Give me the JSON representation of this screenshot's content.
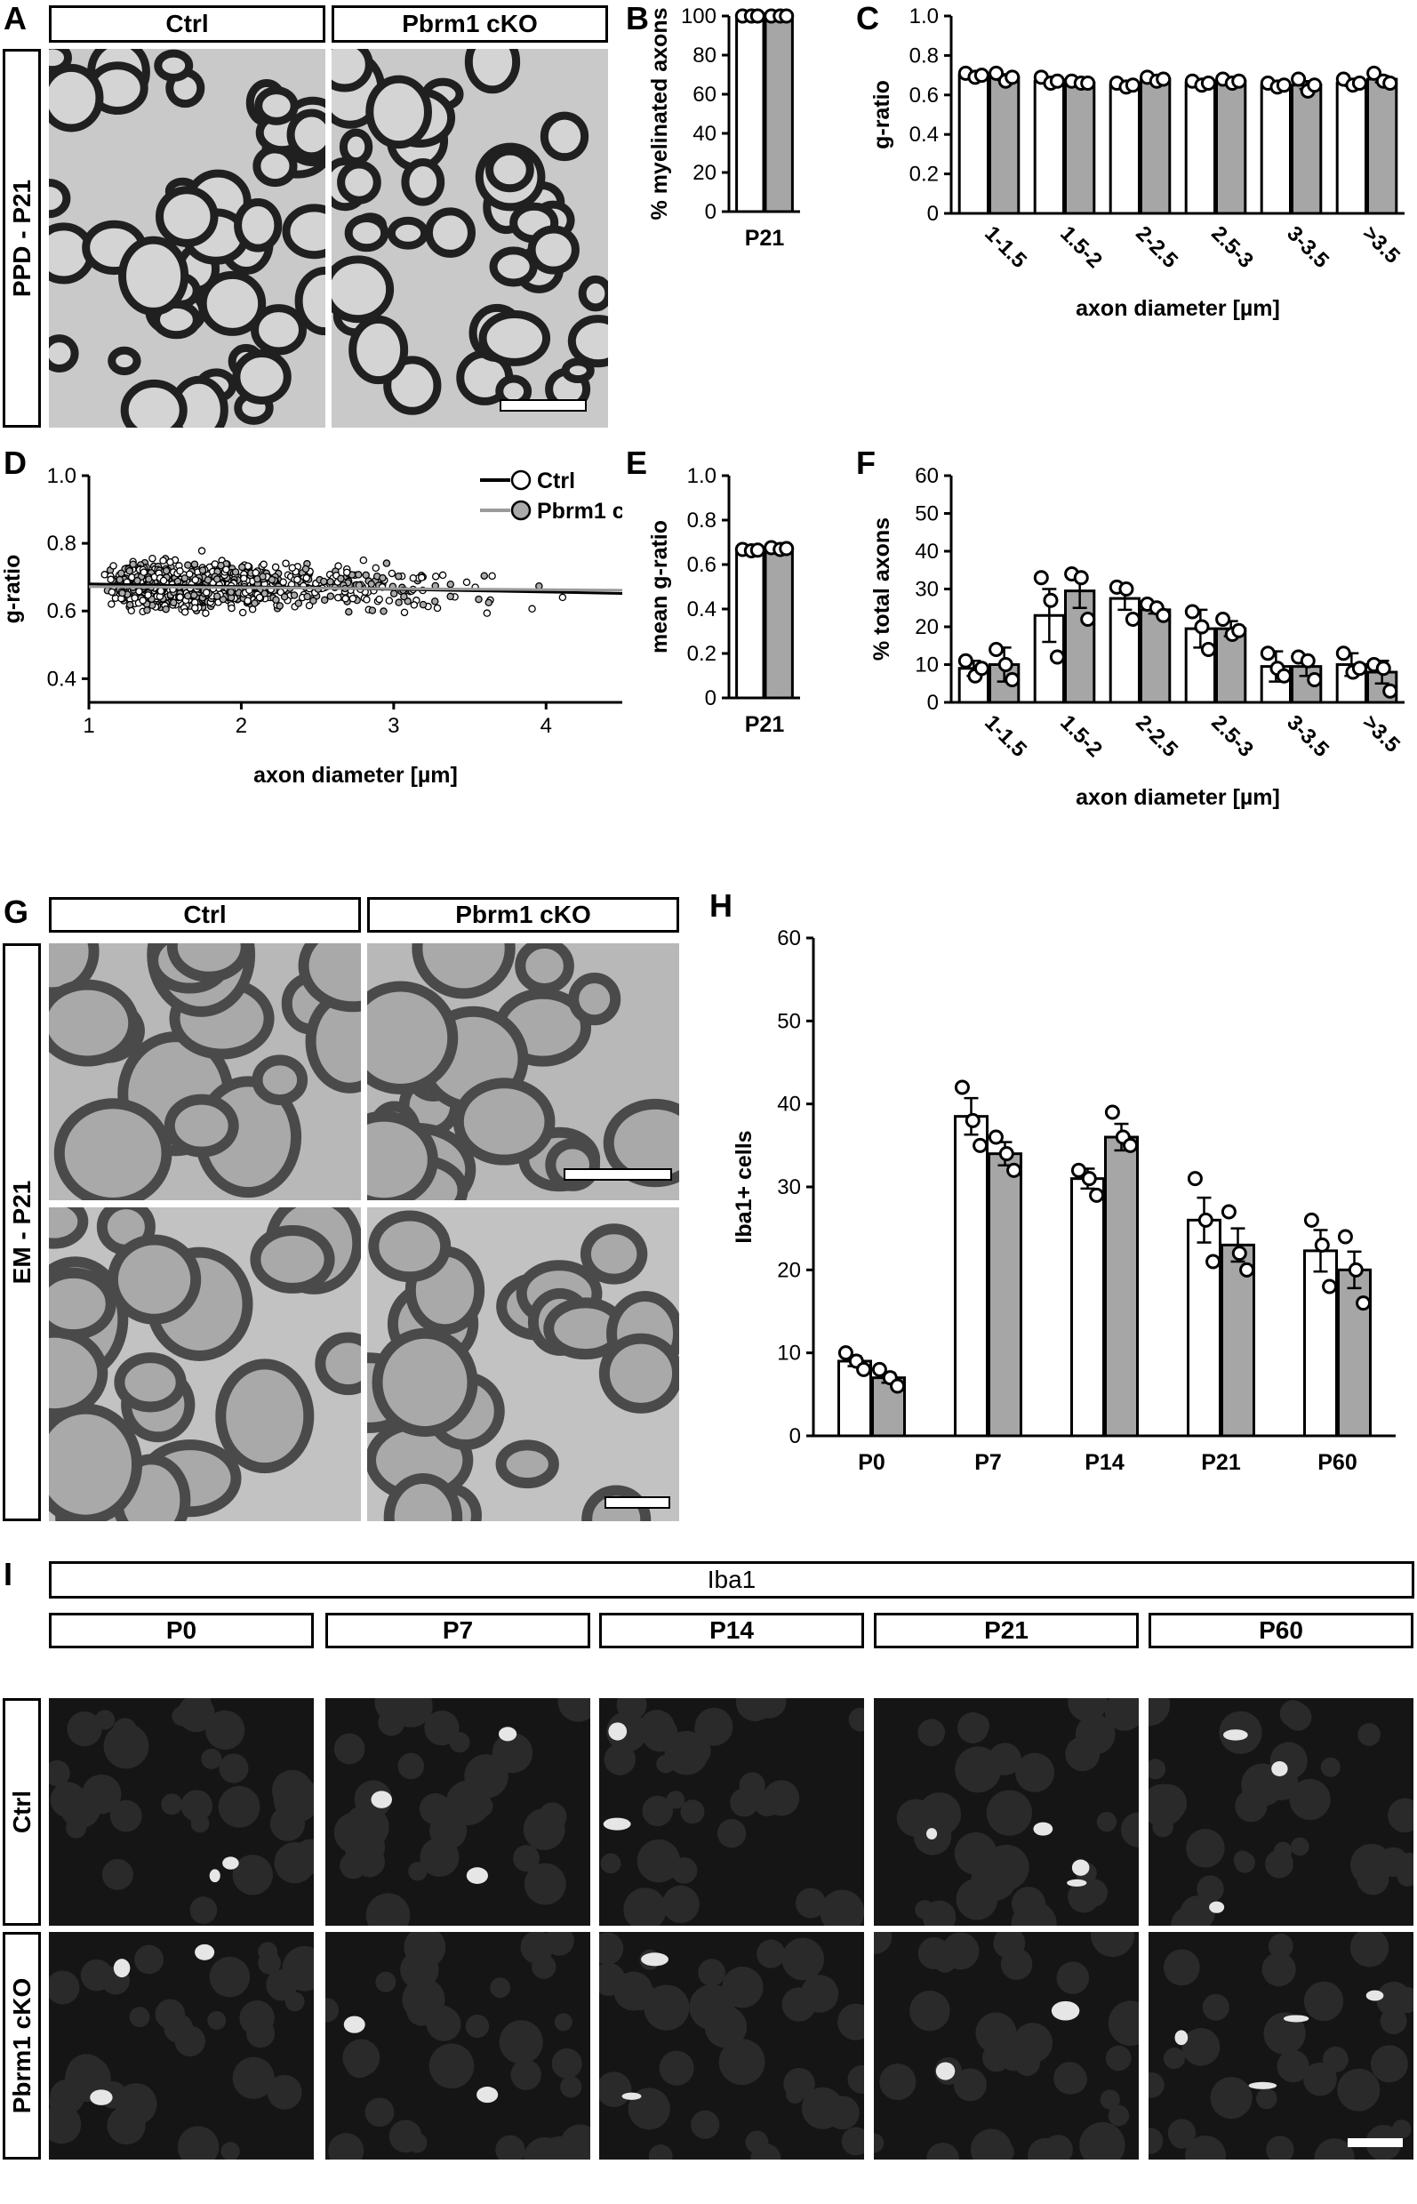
{
  "panels": {
    "A": {
      "letter": "A",
      "col1": "Ctrl",
      "col2": "Pbrm1 cKO",
      "row": "PPD - P21"
    },
    "B": {
      "letter": "B"
    },
    "C": {
      "letter": "C"
    },
    "D": {
      "letter": "D"
    },
    "E": {
      "letter": "E"
    },
    "F": {
      "letter": "F"
    },
    "G": {
      "letter": "G",
      "col1": "Ctrl",
      "col2": "Pbrm1 cKO",
      "row": "EM - P21"
    },
    "H": {
      "letter": "H"
    },
    "I": {
      "letter": "I",
      "title": "Iba1",
      "cols": [
        "P0",
        "P7",
        "P14",
        "P21",
        "P60"
      ],
      "rows": [
        "Ctrl",
        "Pbrm1 cKO"
      ]
    }
  },
  "colors": {
    "ctrl_fill": "#ffffff",
    "cko_fill": "#a6a6a6",
    "ctrl_line": "#000000",
    "cko_line": "#9a9a9a"
  },
  "chart_data": [
    {
      "id": "B",
      "type": "bar",
      "categories": [
        "P21"
      ],
      "ylabel": "% myelinated axons",
      "xlabel": "",
      "ylim": [
        0,
        100
      ],
      "yticks": [
        0,
        20,
        40,
        60,
        80,
        100
      ],
      "series": [
        {
          "name": "Ctrl",
          "values": [
            100
          ],
          "err": [
            0
          ],
          "points": [
            [
              100,
              100,
              100
            ]
          ]
        },
        {
          "name": "Pbrm1 cKO",
          "values": [
            100
          ],
          "err": [
            0
          ],
          "points": [
            [
              100,
              100,
              100
            ]
          ]
        }
      ]
    },
    {
      "id": "C",
      "type": "bar",
      "categories": [
        "1-1.5",
        "1.5-2",
        "2-2.5",
        "2.5-3",
        "3-3.5",
        ">3.5"
      ],
      "ylabel": "g-ratio",
      "xlabel": "axon diameter [µm]",
      "ylim": [
        0,
        1.0
      ],
      "yticks": [
        "0",
        "0.2",
        "0.4",
        "0.6",
        "0.8",
        "1.0"
      ],
      "legend": "top-right",
      "series": [
        {
          "name": "Ctrl",
          "values": [
            0.7,
            0.67,
            0.65,
            0.66,
            0.65,
            0.66
          ],
          "err": [
            0.01,
            0.012,
            0.012,
            0.01,
            0.012,
            0.014
          ],
          "points": [
            [
              0.71,
              0.69,
              0.7
            ],
            [
              0.69,
              0.66,
              0.67
            ],
            [
              0.66,
              0.64,
              0.65
            ],
            [
              0.67,
              0.65,
              0.66
            ],
            [
              0.66,
              0.64,
              0.65
            ],
            [
              0.68,
              0.65,
              0.66
            ]
          ]
        },
        {
          "name": "Pbrm1 cKO",
          "values": [
            0.69,
            0.66,
            0.68,
            0.67,
            0.65,
            0.68
          ],
          "err": [
            0.015,
            0.008,
            0.008,
            0.008,
            0.02,
            0.016
          ],
          "points": [
            [
              0.71,
              0.67,
              0.69
            ],
            [
              0.67,
              0.66,
              0.66
            ],
            [
              0.69,
              0.67,
              0.68
            ],
            [
              0.68,
              0.66,
              0.67
            ],
            [
              0.68,
              0.62,
              0.65
            ],
            [
              0.71,
              0.67,
              0.66
            ]
          ]
        }
      ]
    },
    {
      "id": "D",
      "type": "scatter",
      "xlabel": "axon diameter [µm]",
      "ylabel": "g-ratio",
      "xlim": [
        1,
        4.5
      ],
      "ylim": [
        0.33,
        1.0
      ],
      "xticks": [
        "1",
        "2",
        "3",
        "4"
      ],
      "yticks": [
        "0.4",
        "0.6",
        "0.8",
        "1.0"
      ],
      "legend": "top-right",
      "series": [
        {
          "name": "Ctrl",
          "fit": {
            "slope": -0.008,
            "intercept": 0.688
          }
        },
        {
          "name": "Pbrm1 cKO",
          "fit": {
            "slope": -0.003,
            "intercept": 0.675
          }
        }
      ]
    },
    {
      "id": "E",
      "type": "bar",
      "categories": [
        "P21"
      ],
      "ylabel": "mean g-ratio",
      "xlabel": "",
      "ylim": [
        0,
        1.0
      ],
      "yticks": [
        "0",
        "0.2",
        "0.4",
        "0.6",
        "0.8",
        "1.0"
      ],
      "series": [
        {
          "name": "Ctrl",
          "values": [
            0.665
          ],
          "err": [
            0.004
          ],
          "points": [
            [
              0.668,
              0.662,
              0.665
            ]
          ]
        },
        {
          "name": "Pbrm1 cKO",
          "values": [
            0.672
          ],
          "err": [
            0.005
          ],
          "points": [
            [
              0.676,
              0.668,
              0.672
            ]
          ]
        }
      ]
    },
    {
      "id": "F",
      "type": "bar",
      "categories": [
        "1-1.5",
        "1.5-2",
        "2-2.5",
        "2.5-3",
        "3-3.5",
        ">3.5"
      ],
      "ylabel": "% total axons",
      "xlabel": "axon diameter [µm]",
      "ylim": [
        0,
        60
      ],
      "yticks": [
        0,
        10,
        20,
        30,
        40,
        50,
        60
      ],
      "series": [
        {
          "name": "Ctrl",
          "values": [
            9,
            23,
            27.5,
            19.5,
            9.5,
            10
          ],
          "err": [
            2,
            7,
            3,
            5,
            4,
            3
          ],
          "points": [
            [
              11,
              7,
              9
            ],
            [
              33,
              27,
              12
            ],
            [
              30.5,
              30,
              22
            ],
            [
              24,
              20,
              14
            ],
            [
              13,
              9,
              7
            ],
            [
              13,
              8,
              9
            ]
          ]
        },
        {
          "name": "Pbrm1 cKO",
          "values": [
            10,
            29.5,
            24.5,
            19.5,
            9.5,
            8
          ],
          "err": [
            4.5,
            4.5,
            1,
            2,
            2.5,
            3
          ],
          "points": [
            [
              14,
              10,
              6
            ],
            [
              34,
              33,
              22
            ],
            [
              26,
              25,
              23
            ],
            [
              22,
              18,
              19
            ],
            [
              12,
              11,
              6
            ],
            [
              10,
              9,
              3
            ]
          ]
        }
      ]
    },
    {
      "id": "H",
      "type": "bar",
      "categories": [
        "P0",
        "P7",
        "P14",
        "P21",
        "P60"
      ],
      "ylabel": "Iba1+ cells",
      "xlabel": "",
      "ylim": [
        0,
        60
      ],
      "yticks": [
        0,
        10,
        20,
        30,
        40,
        50,
        60
      ],
      "series": [
        {
          "name": "Ctrl",
          "values": [
            9,
            38.5,
            31,
            26,
            22.3
          ],
          "err": [
            0.6,
            2.2,
            1.2,
            2.7,
            2.5
          ],
          "points": [
            [
              10,
              9,
              8
            ],
            [
              42,
              38,
              35
            ],
            [
              32,
              31,
              29
            ],
            [
              31,
              26,
              21
            ],
            [
              26,
              23,
              18
            ]
          ]
        },
        {
          "name": "Pbrm1 cKO",
          "values": [
            7,
            34,
            36,
            23,
            20
          ],
          "err": [
            0.6,
            1.4,
            1.6,
            2,
            2.2
          ],
          "points": [
            [
              8,
              7,
              6
            ],
            [
              36,
              34,
              32
            ],
            [
              39,
              36,
              35
            ],
            [
              27,
              22,
              20
            ],
            [
              24,
              20,
              16
            ]
          ]
        }
      ]
    }
  ]
}
